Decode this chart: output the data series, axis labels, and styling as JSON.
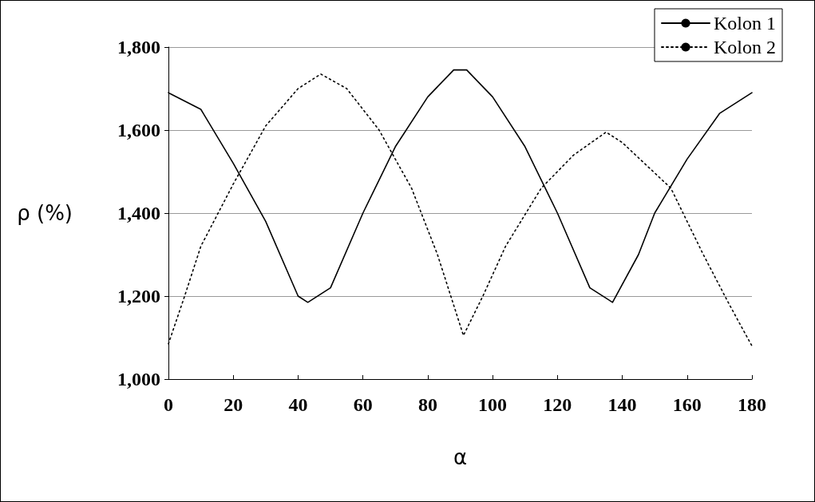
{
  "chart_data": {
    "type": "line",
    "xlabel": "α",
    "ylabel": "ρ (%)",
    "xlim": [
      0,
      180
    ],
    "xticks": [
      0,
      20,
      40,
      60,
      80,
      100,
      120,
      140,
      160,
      180
    ],
    "ylim": [
      1000,
      1800
    ],
    "yticks": [
      {
        "value": 1000,
        "label": "1,000"
      },
      {
        "value": 1200,
        "label": "1,200"
      },
      {
        "value": 1400,
        "label": "1,400"
      },
      {
        "value": 1600,
        "label": "1,600"
      },
      {
        "value": 1800,
        "label": "1,800"
      }
    ],
    "grid": "y",
    "legend": "top right",
    "marker": "none",
    "series": [
      {
        "name": "Kolon 1",
        "color": "#000000",
        "line_style": "solid",
        "x": [
          0,
          10,
          20,
          30,
          40,
          43,
          50,
          60,
          70,
          80,
          88,
          92,
          100,
          110,
          120,
          130,
          137,
          145,
          150,
          160,
          170,
          180
        ],
        "values": [
          1690,
          1650,
          1520,
          1380,
          1200,
          1185,
          1220,
          1400,
          1560,
          1680,
          1745,
          1745,
          1680,
          1560,
          1400,
          1220,
          1185,
          1300,
          1400,
          1530,
          1640,
          1690
        ]
      },
      {
        "name": "Kolon 2",
        "color": "#000000",
        "line_style": "dotted",
        "x": [
          0,
          5,
          10,
          20,
          30,
          40,
          47,
          55,
          65,
          75,
          83,
          91,
          97,
          104,
          115,
          125,
          135,
          140,
          155,
          165,
          173,
          180
        ],
        "values": [
          1085,
          1200,
          1320,
          1470,
          1610,
          1700,
          1735,
          1700,
          1600,
          1460,
          1300,
          1105,
          1200,
          1320,
          1460,
          1540,
          1595,
          1570,
          1460,
          1300,
          1180,
          1080
        ]
      }
    ]
  }
}
